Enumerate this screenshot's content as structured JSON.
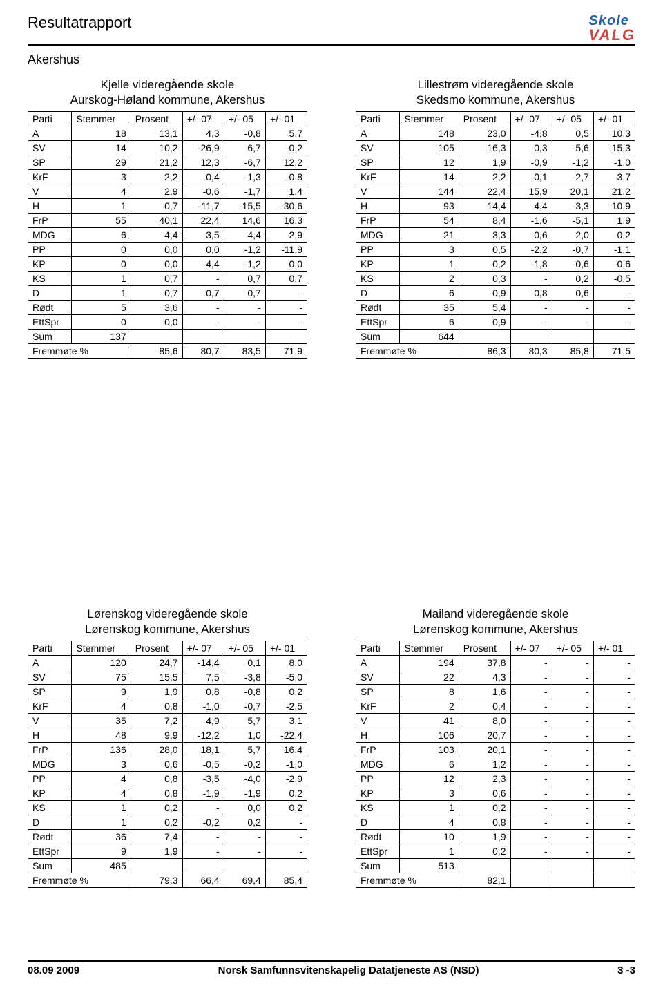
{
  "doc_title": "Resultatrapport",
  "region": "Akershus",
  "logo_top": "Skole",
  "logo_bot": "VALG",
  "footer": {
    "date": "08.09 2009",
    "org": "Norsk Samfunnsvitenskapelig Datatjeneste AS (NSD)",
    "page": "3 -3"
  },
  "column_headers": [
    "Parti",
    "Stemmer",
    "Prosent",
    "+/- 07",
    "+/- 05",
    "+/- 01"
  ],
  "sum_label": "Sum",
  "fremmote_label": "Fremmøte %",
  "tables": [
    {
      "title": "Kjelle videregående skole",
      "subtitle": "Aurskog-Høland kommune, Akershus",
      "rows": [
        [
          "A",
          "18",
          "13,1",
          "4,3",
          "-0,8",
          "5,7"
        ],
        [
          "SV",
          "14",
          "10,2",
          "-26,9",
          "6,7",
          "-0,2"
        ],
        [
          "SP",
          "29",
          "21,2",
          "12,3",
          "-6,7",
          "12,2"
        ],
        [
          "KrF",
          "3",
          "2,2",
          "0,4",
          "-1,3",
          "-0,8"
        ],
        [
          "V",
          "4",
          "2,9",
          "-0,6",
          "-1,7",
          "1,4"
        ],
        [
          "H",
          "1",
          "0,7",
          "-11,7",
          "-15,5",
          "-30,6"
        ],
        [
          "FrP",
          "55",
          "40,1",
          "22,4",
          "14,6",
          "16,3"
        ],
        [
          "MDG",
          "6",
          "4,4",
          "3,5",
          "4,4",
          "2,9"
        ],
        [
          "PP",
          "0",
          "0,0",
          "0,0",
          "-1,2",
          "-11,9"
        ],
        [
          "KP",
          "0",
          "0,0",
          "-4,4",
          "-1,2",
          "0,0"
        ],
        [
          "KS",
          "1",
          "0,7",
          "-",
          "0,7",
          "0,7"
        ],
        [
          "D",
          "1",
          "0,7",
          "0,7",
          "0,7",
          "-"
        ],
        [
          "Rødt",
          "5",
          "3,6",
          "-",
          "-",
          "-"
        ],
        [
          "EttSpr",
          "0",
          "0,0",
          "-",
          "-",
          "-"
        ]
      ],
      "sum": "137",
      "fremmote": [
        "85,6",
        "80,7",
        "83,5",
        "71,9"
      ]
    },
    {
      "title": "Lillestrøm videregående skole",
      "subtitle": "Skedsmo kommune, Akershus",
      "rows": [
        [
          "A",
          "148",
          "23,0",
          "-4,8",
          "0,5",
          "10,3"
        ],
        [
          "SV",
          "105",
          "16,3",
          "0,3",
          "-5,6",
          "-15,3"
        ],
        [
          "SP",
          "12",
          "1,9",
          "-0,9",
          "-1,2",
          "-1,0"
        ],
        [
          "KrF",
          "14",
          "2,2",
          "-0,1",
          "-2,7",
          "-3,7"
        ],
        [
          "V",
          "144",
          "22,4",
          "15,9",
          "20,1",
          "21,2"
        ],
        [
          "H",
          "93",
          "14,4",
          "-4,4",
          "-3,3",
          "-10,9"
        ],
        [
          "FrP",
          "54",
          "8,4",
          "-1,6",
          "-5,1",
          "1,9"
        ],
        [
          "MDG",
          "21",
          "3,3",
          "-0,6",
          "2,0",
          "0,2"
        ],
        [
          "PP",
          "3",
          "0,5",
          "-2,2",
          "-0,7",
          "-1,1"
        ],
        [
          "KP",
          "1",
          "0,2",
          "-1,8",
          "-0,6",
          "-0,6"
        ],
        [
          "KS",
          "2",
          "0,3",
          "-",
          "0,2",
          "-0,5"
        ],
        [
          "D",
          "6",
          "0,9",
          "0,8",
          "0,6",
          "-"
        ],
        [
          "Rødt",
          "35",
          "5,4",
          "-",
          "-",
          "-"
        ],
        [
          "EttSpr",
          "6",
          "0,9",
          "-",
          "-",
          "-"
        ]
      ],
      "sum": "644",
      "fremmote": [
        "86,3",
        "80,3",
        "85,8",
        "71,5"
      ]
    },
    {
      "title": "Lørenskog videregående skole",
      "subtitle": "Lørenskog kommune, Akershus",
      "rows": [
        [
          "A",
          "120",
          "24,7",
          "-14,4",
          "0,1",
          "8,0"
        ],
        [
          "SV",
          "75",
          "15,5",
          "7,5",
          "-3,8",
          "-5,0"
        ],
        [
          "SP",
          "9",
          "1,9",
          "0,8",
          "-0,8",
          "0,2"
        ],
        [
          "KrF",
          "4",
          "0,8",
          "-1,0",
          "-0,7",
          "-2,5"
        ],
        [
          "V",
          "35",
          "7,2",
          "4,9",
          "5,7",
          "3,1"
        ],
        [
          "H",
          "48",
          "9,9",
          "-12,2",
          "1,0",
          "-22,4"
        ],
        [
          "FrP",
          "136",
          "28,0",
          "18,1",
          "5,7",
          "16,4"
        ],
        [
          "MDG",
          "3",
          "0,6",
          "-0,5",
          "-0,2",
          "-1,0"
        ],
        [
          "PP",
          "4",
          "0,8",
          "-3,5",
          "-4,0",
          "-2,9"
        ],
        [
          "KP",
          "4",
          "0,8",
          "-1,9",
          "-1,9",
          "0,2"
        ],
        [
          "KS",
          "1",
          "0,2",
          "-",
          "0,0",
          "0,2"
        ],
        [
          "D",
          "1",
          "0,2",
          "-0,2",
          "0,2",
          "-"
        ],
        [
          "Rødt",
          "36",
          "7,4",
          "-",
          "-",
          "-"
        ],
        [
          "EttSpr",
          "9",
          "1,9",
          "-",
          "-",
          "-"
        ]
      ],
      "sum": "485",
      "fremmote": [
        "79,3",
        "66,4",
        "69,4",
        "85,4"
      ]
    },
    {
      "title": "Mailand videregående skole",
      "subtitle": "Lørenskog kommune, Akershus",
      "rows": [
        [
          "A",
          "194",
          "37,8",
          "-",
          "-",
          "-"
        ],
        [
          "SV",
          "22",
          "4,3",
          "-",
          "-",
          "-"
        ],
        [
          "SP",
          "8",
          "1,6",
          "-",
          "-",
          "-"
        ],
        [
          "KrF",
          "2",
          "0,4",
          "-",
          "-",
          "-"
        ],
        [
          "V",
          "41",
          "8,0",
          "-",
          "-",
          "-"
        ],
        [
          "H",
          "106",
          "20,7",
          "-",
          "-",
          "-"
        ],
        [
          "FrP",
          "103",
          "20,1",
          "-",
          "-",
          "-"
        ],
        [
          "MDG",
          "6",
          "1,2",
          "-",
          "-",
          "-"
        ],
        [
          "PP",
          "12",
          "2,3",
          "-",
          "-",
          "-"
        ],
        [
          "KP",
          "3",
          "0,6",
          "-",
          "-",
          "-"
        ],
        [
          "KS",
          "1",
          "0,2",
          "-",
          "-",
          "-"
        ],
        [
          "D",
          "4",
          "0,8",
          "-",
          "-",
          "-"
        ],
        [
          "Rødt",
          "10",
          "1,9",
          "-",
          "-",
          "-"
        ],
        [
          "EttSpr",
          "1",
          "0,2",
          "-",
          "-",
          "-"
        ]
      ],
      "sum": "513",
      "fremmote": [
        "82,1",
        "",
        "",
        ""
      ]
    }
  ]
}
